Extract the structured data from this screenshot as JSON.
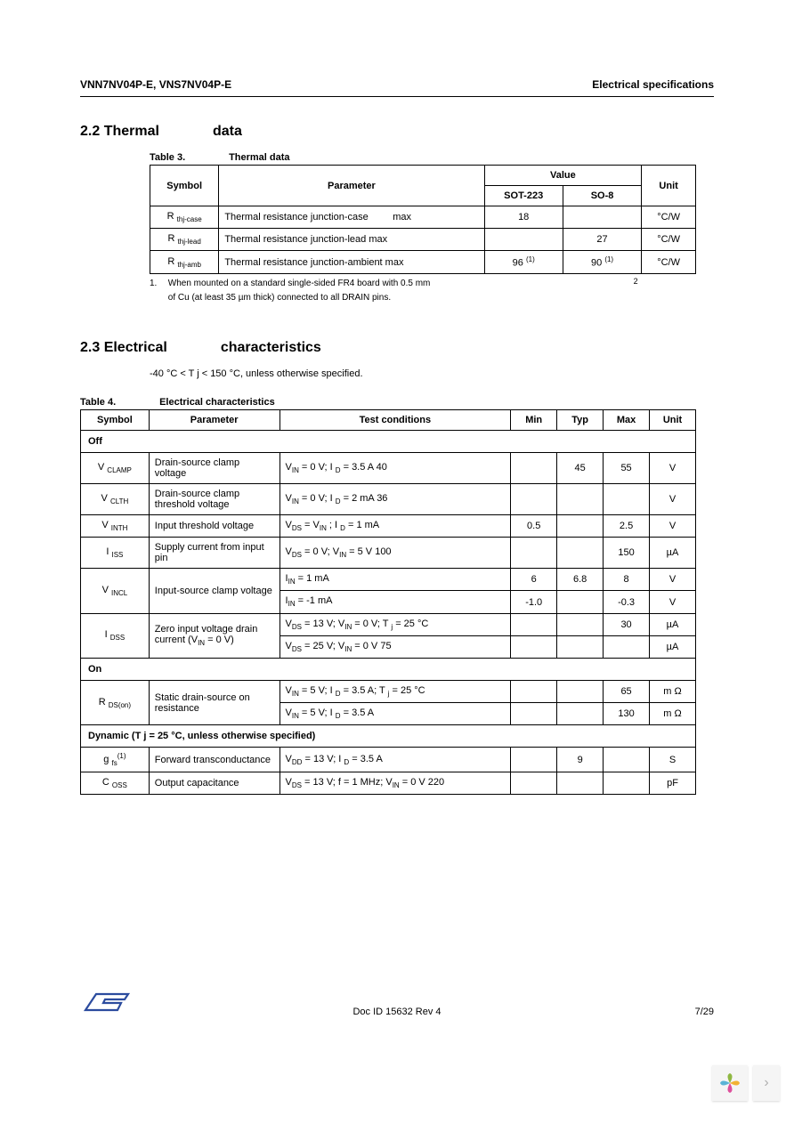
{
  "header": {
    "left": "VNN7NV04P-E, VNS7NV04P-E",
    "right": "Electrical specifications"
  },
  "section22": {
    "num": "2.2 Thermal",
    "word": "data",
    "caption_num": "Table 3.",
    "caption_title": "Thermal data",
    "cols": {
      "symbol": "Symbol",
      "parameter": "Parameter",
      "value": "Value",
      "sot223": "SOT-223",
      "so8": "SO-8",
      "unit": "Unit"
    },
    "rows": [
      {
        "sym": "R",
        "symsub": "thj-case",
        "param": "Thermal resistance junction-case",
        "param_suffix": "max",
        "sot": "18",
        "so8": "",
        "unit": "°C/W"
      },
      {
        "sym": "R",
        "symsub": "thj-lead",
        "param": "Thermal resistance junction-lead max",
        "param_suffix": "",
        "sot": "",
        "so8": "27",
        "unit": "°C/W"
      },
      {
        "sym": "R",
        "symsub": "thj-amb",
        "param": "Thermal resistance junction-ambient max",
        "param_suffix": "",
        "sot": "96",
        "sot_sup": "(1)",
        "so8": "90",
        "so8_sup": "(1)",
        "unit": "°C/W"
      }
    ],
    "footnote_num": "1.",
    "footnote_a": "When mounted on a standard single-sided FR4 board with 0.5 mm",
    "footnote_sup": "2",
    "footnote_b": "of Cu (at least 35 µm thick) connected to all DRAIN pins."
  },
  "section23": {
    "num": "2.3 Electrical",
    "word": "characteristics",
    "condition": "-40 °C < T j < 150 °C, unless otherwise specified.",
    "caption_num": "Table 4.",
    "caption_title": "Electrical characteristics",
    "cols": {
      "symbol": "Symbol",
      "parameter": "Parameter",
      "tc": "Test conditions",
      "min": "Min",
      "typ": "Typ",
      "max": "Max",
      "unit": "Unit"
    },
    "groups": {
      "off": "Off",
      "on": "On",
      "dyn": "Dynamic (T j = 25 °C, unless otherwise specified)"
    },
    "rows_off": [
      {
        "sym": "V",
        "symsub": "CLAMP",
        "param": "Drain-source clamp voltage",
        "tc": "V IN = 0 V; I D = 3.5 A 40",
        "min": "",
        "typ": "45",
        "max": "55",
        "unit": "V"
      },
      {
        "sym": "V",
        "symsub": "CLTH",
        "param": "Drain-source clamp threshold voltage",
        "tc": "V IN = 0 V; I D = 2 mA 36",
        "min": "",
        "typ": "",
        "max": "",
        "unit": "V"
      },
      {
        "sym": "V",
        "symsub": "INTH",
        "param": "Input threshold voltage",
        "tc": "V DS = V IN ; I D = 1 mA",
        "min": "0.5",
        "typ": "",
        "max": "2.5",
        "unit": "V"
      },
      {
        "sym": "I",
        "symsub": "ISS",
        "param": "Supply current from input pin",
        "tc": "V DS = 0 V; V IN = 5 V 100",
        "min": "",
        "typ": "",
        "max": "150",
        "unit": "µA"
      },
      {
        "sym": "V",
        "symsub": "INCL",
        "param": "Input-source clamp voltage",
        "tc1": "I IN = 1 mA",
        "min1": "6",
        "typ1": "6.8",
        "max1": "8",
        "unit1": "V",
        "tc2": "I IN = -1 mA",
        "min2": "-1.0",
        "typ2": "",
        "max2": "-0.3",
        "unit2": "V",
        "rowspan": 2
      },
      {
        "sym": "I",
        "symsub": "DSS",
        "param": "Zero input voltage drain current (V IN = 0 V)",
        "tc1": "V DS = 13 V; V IN = 0 V; T j = 25 °C",
        "min1": "",
        "typ1": "",
        "max1": "30",
        "unit1": "µA",
        "tc2": "V DS = 25 V; V IN = 0 V 75",
        "min2": "",
        "typ2": "",
        "max2": "",
        "unit2": "µA",
        "rowspan": 2
      }
    ],
    "rows_on": [
      {
        "sym": "R",
        "symsub": "DS(on)",
        "param": "Static drain-source on resistance",
        "tc1": "V IN = 5 V; I D = 3.5 A; T j = 25 °C",
        "min1": "",
        "typ1": "",
        "max1": "65",
        "unit1": "m Ω",
        "tc2": "V IN = 5 V; I D = 3.5 A",
        "min2": "",
        "typ2": "",
        "max2": "130",
        "unit2": "m Ω",
        "rowspan": 2
      }
    ],
    "rows_dyn": [
      {
        "sym": "g",
        "symsub": "fs",
        "symsup": "(1)",
        "param": "Forward transconductance",
        "tc": "V DD = 13 V; I D = 3.5 A",
        "min": "",
        "typ": "9",
        "max": "",
        "unit": "S"
      },
      {
        "sym": "C",
        "symsub": "OSS",
        "param": "Output capacitance",
        "tc": "V DS = 13 V; f = 1 MHz; V IN = 0 V 220",
        "min": "",
        "typ": "",
        "max": "",
        "unit": "pF"
      }
    ]
  },
  "footer": {
    "docid": "Doc ID 15632 Rev 4",
    "page": "7/29"
  },
  "colors": {
    "logo_blue": "#2b4b9e",
    "petal1": "#8fb842",
    "petal2": "#f2b233",
    "petal3": "#de4f9c",
    "petal4": "#5bb4d6"
  }
}
